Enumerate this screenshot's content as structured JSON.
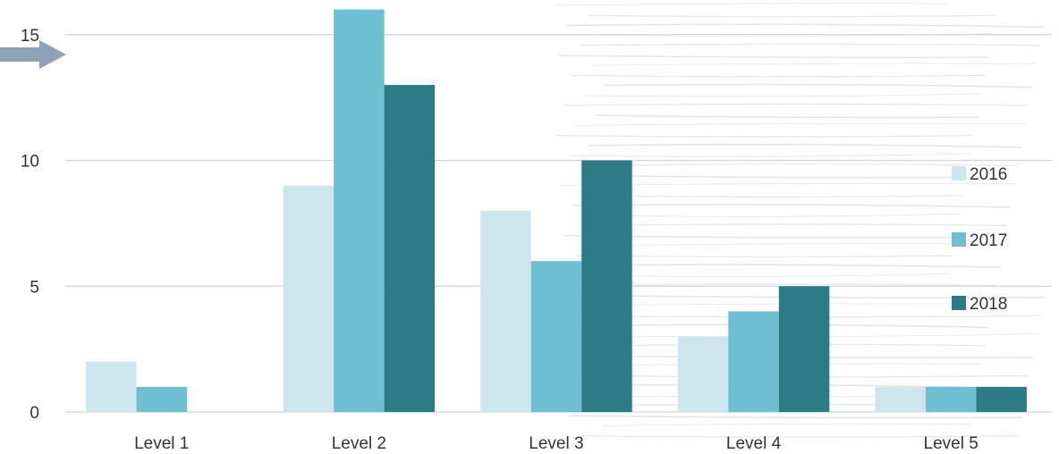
{
  "chart_data": {
    "type": "bar",
    "categories": [
      "Level 1",
      "Level 2",
      "Level 3",
      "Level 4",
      "Level 5"
    ],
    "series": [
      {
        "name": "2016",
        "values": [
          2,
          9,
          8,
          3,
          1
        ],
        "color": "#cde6ed"
      },
      {
        "name": "2017",
        "values": [
          1,
          16,
          6,
          4,
          1
        ],
        "color": "#6fbfd3"
      },
      {
        "name": "2018",
        "values": [
          0,
          13,
          10,
          5,
          1
        ],
        "color": "#2e7b88"
      }
    ],
    "y_ticks": [
      "0",
      "5",
      "10",
      "15"
    ],
    "ylim": [
      0,
      16
    ],
    "grid": true,
    "legend_position": "right",
    "title": "",
    "xlabel": "",
    "ylabel": ""
  },
  "colors": {
    "gridline": "#c9d6e3",
    "axis": "#c9d6e3",
    "arrow": "#8fa1b6",
    "texture": "#e6e6e6"
  },
  "decor": {
    "arrow_icon": "right-arrow-icon",
    "texture": "wood-grain-texture"
  }
}
